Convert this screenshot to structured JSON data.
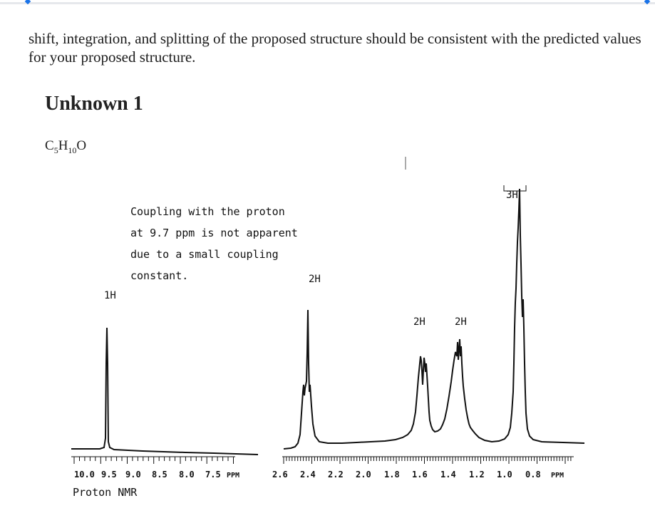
{
  "intro_text": "shift, integration, and splitting of the proposed structure should be consistent with the predicted values for your proposed structure.",
  "heading": "Unknown 1",
  "formula": {
    "c": "C",
    "c_sub": "5",
    "h": "H",
    "h_sub": "10",
    "o": "O"
  },
  "note_lines": [
    "Coupling with the proton",
    "at 9.7 ppm is not apparent",
    "due to a small coupling",
    "constant."
  ],
  "integrations": {
    "peak_9_7": "1H",
    "peak_2_4": "2H",
    "peak_1_6": "2H",
    "peak_1_35": "2H",
    "peak_0_9": "3H"
  },
  "axis_left": {
    "ticks": [
      "10.0",
      "9.5",
      "9.0",
      "8.5",
      "8.0",
      "7.5"
    ],
    "unit": "PPM"
  },
  "axis_right": {
    "ticks": [
      "2.6",
      "2.4",
      "2.2",
      "2.0",
      "1.8",
      "1.6",
      "1.4",
      "1.2",
      "1.0",
      "0.8"
    ],
    "unit": "PPM"
  },
  "caption": "Proton NMR",
  "accent_color": "#1a73e8",
  "trace_color": "#111111"
}
